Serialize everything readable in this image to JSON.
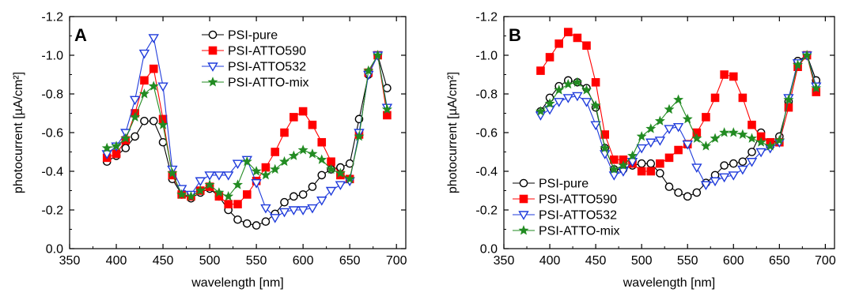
{
  "chart_data": [
    {
      "type": "line",
      "panel_label": "A",
      "xlabel": "wavelength [nm]",
      "ylabel": "photocurrent [µA/cm²]",
      "xlim": [
        350,
        710
      ],
      "ylim": [
        0.0,
        -1.2
      ],
      "y_axis_inverted": true,
      "xticks": [
        350,
        400,
        450,
        500,
        550,
        600,
        650,
        700
      ],
      "yticks": [
        0.0,
        -0.2,
        -0.4,
        -0.6,
        -0.8,
        -1.0,
        -1.2
      ],
      "xtick_labels": [
        "350",
        "400",
        "450",
        "500",
        "550",
        "600",
        "650",
        "700"
      ],
      "ytick_labels": [
        "0.0",
        "-0.2",
        "-0.4",
        "-0.6",
        "-0.8",
        "-1.0",
        "-1.2"
      ],
      "legend_position": "top-center",
      "x": [
        390,
        400,
        410,
        420,
        430,
        440,
        450,
        460,
        470,
        480,
        490,
        500,
        510,
        520,
        530,
        540,
        550,
        560,
        570,
        580,
        590,
        600,
        610,
        620,
        630,
        640,
        650,
        660,
        670,
        680,
        690
      ],
      "series": [
        {
          "name": "PSI-pure",
          "color": "#000000",
          "marker": "open-circle",
          "values": [
            -0.45,
            -0.48,
            -0.52,
            -0.58,
            -0.66,
            -0.66,
            -0.55,
            -0.36,
            -0.28,
            -0.26,
            -0.29,
            -0.31,
            -0.27,
            -0.2,
            -0.15,
            -0.13,
            -0.12,
            -0.14,
            -0.18,
            -0.24,
            -0.27,
            -0.28,
            -0.32,
            -0.38,
            -0.41,
            -0.42,
            -0.44,
            -0.67,
            -0.9,
            -1.0,
            -0.83
          ]
        },
        {
          "name": "PSI-ATTO590",
          "color": "#ff0000",
          "marker": "filled-square",
          "values": [
            -0.47,
            -0.49,
            -0.56,
            -0.7,
            -0.87,
            -0.93,
            -0.67,
            -0.38,
            -0.28,
            -0.27,
            -0.3,
            -0.32,
            -0.27,
            -0.23,
            -0.23,
            -0.28,
            -0.35,
            -0.42,
            -0.5,
            -0.6,
            -0.68,
            -0.71,
            -0.64,
            -0.55,
            -0.45,
            -0.38,
            -0.36,
            -0.59,
            -0.91,
            -1.0,
            -0.69
          ]
        },
        {
          "name": "PSI-ATTO532",
          "color": "#1f3bdb",
          "marker": "open-triangle-down",
          "values": [
            -0.49,
            -0.53,
            -0.6,
            -0.77,
            -1.01,
            -1.09,
            -0.84,
            -0.41,
            -0.31,
            -0.28,
            -0.35,
            -0.38,
            -0.38,
            -0.38,
            -0.44,
            -0.46,
            -0.34,
            -0.21,
            -0.16,
            -0.19,
            -0.2,
            -0.2,
            -0.21,
            -0.25,
            -0.3,
            -0.33,
            -0.35,
            -0.6,
            -0.9,
            -1.0,
            -0.73
          ]
        },
        {
          "name": "PSI-ATTO-mix",
          "color": "#228b22",
          "marker": "filled-star",
          "values": [
            -0.52,
            -0.53,
            -0.57,
            -0.68,
            -0.8,
            -0.84,
            -0.64,
            -0.39,
            -0.28,
            -0.27,
            -0.3,
            -0.33,
            -0.29,
            -0.27,
            -0.33,
            -0.45,
            -0.4,
            -0.38,
            -0.41,
            -0.45,
            -0.48,
            -0.51,
            -0.49,
            -0.46,
            -0.41,
            -0.39,
            -0.36,
            -0.58,
            -0.92,
            -1.0,
            -0.72
          ]
        }
      ]
    },
    {
      "type": "line",
      "panel_label": "B",
      "xlabel": "wavelength [nm]",
      "ylabel": "photocurrent [µA/cm²]",
      "xlim": [
        350,
        710
      ],
      "ylim": [
        0.0,
        -1.2
      ],
      "y_axis_inverted": true,
      "xticks": [
        350,
        400,
        450,
        500,
        550,
        600,
        650,
        700
      ],
      "yticks": [
        0.0,
        -0.2,
        -0.4,
        -0.6,
        -0.8,
        -1.0,
        -1.2
      ],
      "xtick_labels": [
        "350",
        "400",
        "450",
        "500",
        "550",
        "600",
        "650",
        "700"
      ],
      "ytick_labels": [
        "0.0",
        "-0.2",
        "-0.4",
        "-0.6",
        "-0.8",
        "-1.0",
        "-1.2"
      ],
      "legend_position": "bottom-left",
      "x": [
        390,
        400,
        410,
        420,
        430,
        440,
        450,
        460,
        470,
        480,
        490,
        500,
        510,
        520,
        530,
        540,
        550,
        560,
        570,
        580,
        590,
        600,
        610,
        620,
        630,
        640,
        650,
        660,
        670,
        680,
        690
      ],
      "series": [
        {
          "name": "PSI-pure",
          "color": "#000000",
          "marker": "open-circle",
          "values": [
            -0.71,
            -0.78,
            -0.84,
            -0.87,
            -0.86,
            -0.83,
            -0.73,
            -0.52,
            -0.41,
            -0.41,
            -0.43,
            -0.44,
            -0.44,
            -0.39,
            -0.32,
            -0.29,
            -0.27,
            -0.29,
            -0.34,
            -0.38,
            -0.43,
            -0.44,
            -0.45,
            -0.5,
            -0.6,
            -0.53,
            -0.58,
            -0.76,
            -0.97,
            -1.0,
            -0.87
          ]
        },
        {
          "name": "PSI-ATTO590",
          "color": "#ff0000",
          "marker": "filled-square",
          "values": [
            -0.92,
            -0.99,
            -1.06,
            -1.12,
            -1.09,
            -1.05,
            -0.86,
            -0.59,
            -0.46,
            -0.46,
            -0.44,
            -0.4,
            -0.4,
            -0.44,
            -0.47,
            -0.51,
            -0.54,
            -0.6,
            -0.68,
            -0.78,
            -0.9,
            -0.89,
            -0.78,
            -0.64,
            -0.58,
            -0.55,
            -0.55,
            -0.73,
            -0.94,
            -1.0,
            -0.81
          ]
        },
        {
          "name": "PSI-ATTO532",
          "color": "#1f3bdb",
          "marker": "open-triangle-down",
          "values": [
            -0.69,
            -0.72,
            -0.76,
            -0.78,
            -0.79,
            -0.76,
            -0.64,
            -0.49,
            -0.38,
            -0.4,
            -0.45,
            -0.52,
            -0.55,
            -0.56,
            -0.62,
            -0.63,
            -0.54,
            -0.42,
            -0.33,
            -0.35,
            -0.37,
            -0.38,
            -0.41,
            -0.45,
            -0.5,
            -0.52,
            -0.55,
            -0.78,
            -0.96,
            -1.0,
            -0.84
          ]
        },
        {
          "name": "PSI-ATTO-mix",
          "color": "#228b22",
          "marker": "filled-star",
          "values": [
            -0.71,
            -0.75,
            -0.82,
            -0.85,
            -0.86,
            -0.82,
            -0.74,
            -0.52,
            -0.41,
            -0.43,
            -0.48,
            -0.58,
            -0.62,
            -0.66,
            -0.72,
            -0.77,
            -0.67,
            -0.57,
            -0.53,
            -0.57,
            -0.6,
            -0.6,
            -0.59,
            -0.57,
            -0.55,
            -0.53,
            -0.56,
            -0.77,
            -0.95,
            -1.0,
            -0.83
          ]
        }
      ]
    }
  ]
}
